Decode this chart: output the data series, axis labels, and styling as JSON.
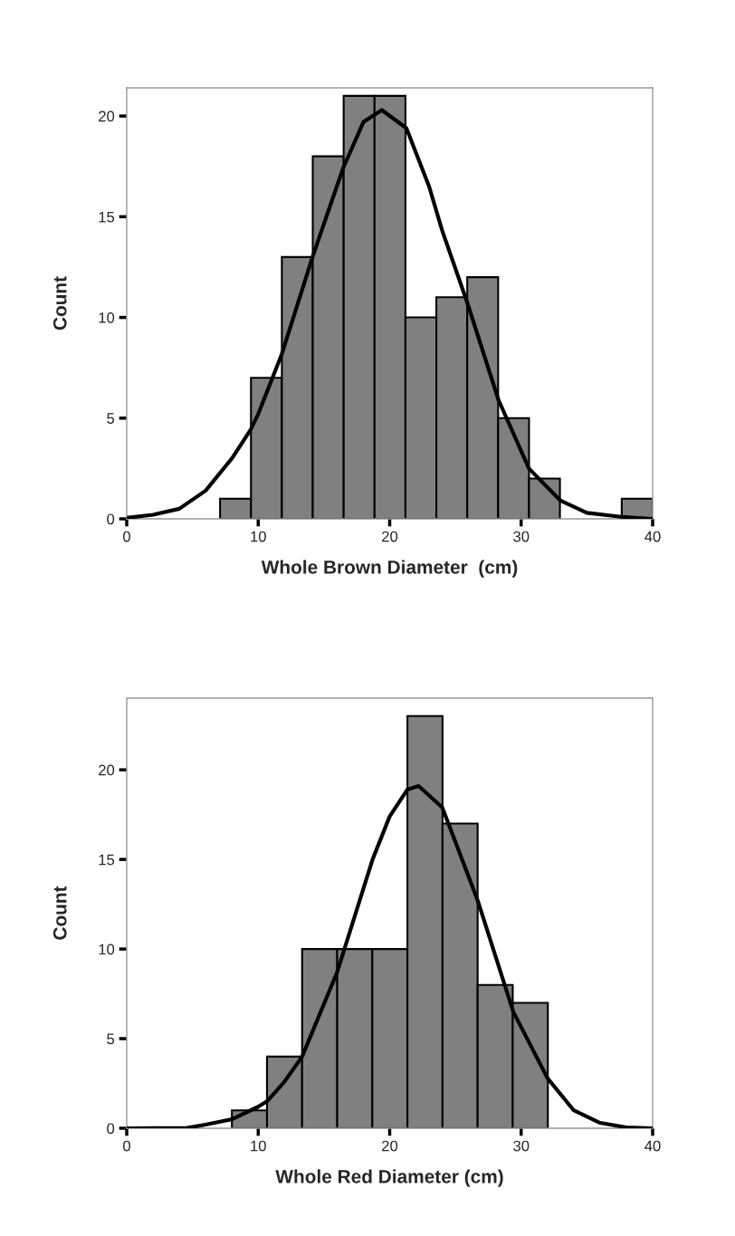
{
  "chart_data": [
    {
      "type": "histogram",
      "bins": [
        7.1,
        9.45,
        11.8,
        14.15,
        16.5,
        18.85,
        21.2,
        23.55,
        25.9,
        28.25,
        30.6,
        32.95,
        35.3,
        37.65,
        40.0
      ],
      "values": [
        1,
        7,
        13,
        18,
        21,
        21,
        10,
        11,
        12,
        5,
        2,
        0,
        0,
        1
      ],
      "color": "#808080",
      "series": [
        {
          "type": "line",
          "color": "#000000",
          "x": [
            0,
            2,
            4,
            6,
            8,
            9.4,
            10,
            11.75,
            12,
            14.08,
            16.45,
            18,
            19.4,
            21.27,
            23,
            24,
            25.92,
            28.28,
            30.59,
            33,
            35,
            37.6,
            40
          ],
          "values": [
            0.05,
            0.2,
            0.5,
            1.4,
            3.0,
            4.4,
            5.2,
            8.1,
            8.6,
            12.9,
            17.4,
            19.7,
            20.3,
            19.4,
            16.5,
            14.3,
            10.7,
            5.9,
            2.5,
            0.9,
            0.3,
            0.1,
            0
          ]
        }
      ],
      "xlim": [
        0,
        40
      ],
      "ylim": [
        0,
        21.4
      ],
      "xticks": [
        0,
        10,
        20,
        30,
        40
      ],
      "yticks": [
        0,
        5,
        10,
        15,
        20
      ],
      "xlabel": "Whole Brown Diameter  (cm)",
      "ylabel": "Count",
      "grid": false
    },
    {
      "type": "histogram",
      "bins": [
        8.0,
        10.67,
        13.34,
        16.01,
        18.68,
        21.35,
        24.02,
        26.69,
        29.36,
        32.03
      ],
      "values": [
        1,
        4,
        10,
        10,
        10,
        23,
        17,
        8,
        7
      ],
      "color": "#808080",
      "series": [
        {
          "type": "line",
          "color": "#000000",
          "x": [
            0,
            4.6,
            6,
            8,
            10,
            10.67,
            12,
            13.34,
            16,
            18.7,
            20,
            21.35,
            22.2,
            24,
            26.7,
            29.4,
            32,
            34,
            36,
            38,
            40
          ],
          "values": [
            0,
            0.02,
            0.2,
            0.5,
            1.2,
            1.5,
            2.6,
            4.0,
            8.7,
            15.0,
            17.4,
            18.9,
            19.1,
            17.9,
            12.7,
            6.5,
            2.8,
            1.0,
            0.3,
            0.05,
            0
          ]
        }
      ],
      "xlim": [
        0,
        40
      ],
      "ylim": [
        0,
        24
      ],
      "xticks": [
        0,
        10,
        20,
        30,
        40
      ],
      "yticks": [
        0,
        5,
        10,
        15,
        20
      ],
      "xlabel": "Whole Red Diameter (cm)",
      "ylabel": "Count",
      "grid": false
    }
  ]
}
